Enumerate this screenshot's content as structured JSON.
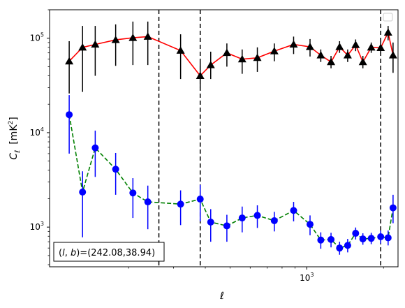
{
  "chart_data": {
    "type": "scatter",
    "xlabel": "ℓ",
    "ylabel_main": "C",
    "ylabel_sub": "ℓ",
    "ylabel_unit": "[mK",
    "ylabel_unit_sup": "2",
    "ylabel_unit_close": "]",
    "xscale": "log",
    "yscale": "log",
    "xlim": [
      98,
      2280
    ],
    "ylim": [
      380,
      200000
    ],
    "xticks": [
      {
        "value": 1000,
        "base": "10",
        "exp": "3"
      }
    ],
    "yticks": [
      {
        "value": 1000,
        "base": "10",
        "exp": "3"
      },
      {
        "value": 10000,
        "base": "10",
        "exp": "4"
      },
      {
        "value": 100000,
        "base": "10",
        "exp": "5"
      }
    ],
    "annotation": "(l, b)=(242.08,38.94)",
    "annotation_parts": {
      "prefix": "(",
      "l": "l",
      "sep": ", ",
      "b": "b",
      "suffix": ")=(242.08,38.94)"
    },
    "vlines": [
      263,
      382,
      1950
    ],
    "legend": {
      "position": "top-right",
      "entries": []
    },
    "series": [
      {
        "marker": "triangle",
        "marker_color": "#000000",
        "line_color": "#ff0000",
        "line_style": "solid",
        "errorbar_color": "#000000",
        "points": [
          {
            "x": 117,
            "y": 57000,
            "lo": 26000,
            "hi": 93000
          },
          {
            "x": 132,
            "y": 80000,
            "lo": 27000,
            "hi": 135000
          },
          {
            "x": 148,
            "y": 86000,
            "lo": 40000,
            "hi": 135000
          },
          {
            "x": 178,
            "y": 96000,
            "lo": 51000,
            "hi": 140000
          },
          {
            "x": 208,
            "y": 101000,
            "lo": 52000,
            "hi": 150000
          },
          {
            "x": 238,
            "y": 104000,
            "lo": 52000,
            "hi": 150000
          },
          {
            "x": 320,
            "y": 74000,
            "lo": 37000,
            "hi": 110000
          },
          {
            "x": 382,
            "y": 40000,
            "lo": 30000,
            "hi": 55000
          },
          {
            "x": 420,
            "y": 52000,
            "lo": 37000,
            "hi": 72000
          },
          {
            "x": 486,
            "y": 70000,
            "lo": 50000,
            "hi": 88000
          },
          {
            "x": 558,
            "y": 60000,
            "lo": 42000,
            "hi": 76000
          },
          {
            "x": 640,
            "y": 62000,
            "lo": 44000,
            "hi": 80000
          },
          {
            "x": 746,
            "y": 73000,
            "lo": 57000,
            "hi": 88000
          },
          {
            "x": 888,
            "y": 86000,
            "lo": 68000,
            "hi": 104000
          },
          {
            "x": 1030,
            "y": 81000,
            "lo": 64000,
            "hi": 98000
          },
          {
            "x": 1135,
            "y": 66000,
            "lo": 56000,
            "hi": 76000
          },
          {
            "x": 1245,
            "y": 56000,
            "lo": 48000,
            "hi": 65000
          },
          {
            "x": 1345,
            "y": 81000,
            "lo": 70000,
            "hi": 93000
          },
          {
            "x": 1447,
            "y": 66000,
            "lo": 56000,
            "hi": 76000
          },
          {
            "x": 1555,
            "y": 85000,
            "lo": 73000,
            "hi": 97000
          },
          {
            "x": 1660,
            "y": 56000,
            "lo": 48000,
            "hi": 65000
          },
          {
            "x": 1790,
            "y": 80000,
            "lo": 70000,
            "hi": 90000
          },
          {
            "x": 1950,
            "y": 79000,
            "lo": 68000,
            "hi": 92000
          },
          {
            "x": 2085,
            "y": 115000,
            "lo": 95000,
            "hi": 135000
          },
          {
            "x": 2180,
            "y": 66000,
            "lo": 43000,
            "hi": 90000
          }
        ]
      },
      {
        "marker": "circle",
        "marker_color": "#0000ff",
        "line_color": "#008000",
        "line_style": "dashed",
        "errorbar_color": "#0000ff",
        "points": [
          {
            "x": 117,
            "y": 15500,
            "lo": 6000,
            "hi": 25000
          },
          {
            "x": 132,
            "y": 2350,
            "lo": 780,
            "hi": 3900
          },
          {
            "x": 148,
            "y": 6900,
            "lo": 3400,
            "hi": 10500
          },
          {
            "x": 178,
            "y": 4100,
            "lo": 2200,
            "hi": 6100
          },
          {
            "x": 208,
            "y": 2300,
            "lo": 1250,
            "hi": 3300
          },
          {
            "x": 238,
            "y": 1850,
            "lo": 950,
            "hi": 2750
          },
          {
            "x": 320,
            "y": 1750,
            "lo": 1050,
            "hi": 2450
          },
          {
            "x": 382,
            "y": 1980,
            "lo": 1150,
            "hi": 2800
          },
          {
            "x": 420,
            "y": 1130,
            "lo": 700,
            "hi": 1550
          },
          {
            "x": 486,
            "y": 1030,
            "lo": 700,
            "hi": 1350
          },
          {
            "x": 558,
            "y": 1250,
            "lo": 880,
            "hi": 1650
          },
          {
            "x": 640,
            "y": 1330,
            "lo": 980,
            "hi": 1700
          },
          {
            "x": 746,
            "y": 1170,
            "lo": 900,
            "hi": 1450
          },
          {
            "x": 888,
            "y": 1500,
            "lo": 1150,
            "hi": 1850
          },
          {
            "x": 1030,
            "y": 1070,
            "lo": 820,
            "hi": 1330
          },
          {
            "x": 1135,
            "y": 730,
            "lo": 590,
            "hi": 880
          },
          {
            "x": 1245,
            "y": 740,
            "lo": 610,
            "hi": 870
          },
          {
            "x": 1345,
            "y": 600,
            "lo": 510,
            "hi": 700
          },
          {
            "x": 1447,
            "y": 640,
            "lo": 540,
            "hi": 750
          },
          {
            "x": 1555,
            "y": 860,
            "lo": 740,
            "hi": 990
          },
          {
            "x": 1660,
            "y": 750,
            "lo": 650,
            "hi": 860
          },
          {
            "x": 1790,
            "y": 760,
            "lo": 660,
            "hi": 870
          },
          {
            "x": 1950,
            "y": 790,
            "lo": 670,
            "hi": 920
          },
          {
            "x": 2085,
            "y": 770,
            "lo": 640,
            "hi": 920
          },
          {
            "x": 2180,
            "y": 1600,
            "lo": 1100,
            "hi": 2200
          }
        ]
      }
    ]
  }
}
